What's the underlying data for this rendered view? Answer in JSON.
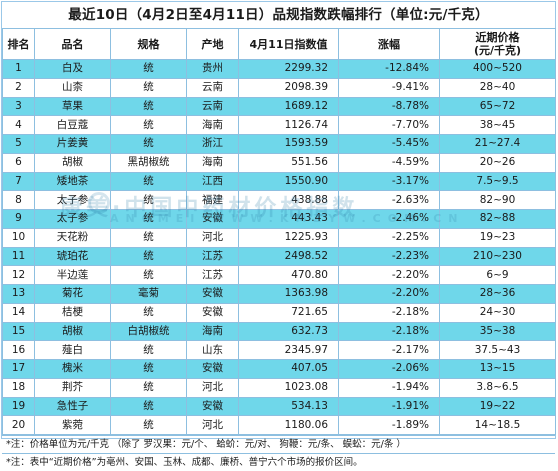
{
  "title": "最近10日（4月2日至4月11日）品规指数跌幅排行（单位:元/千克）",
  "headers": {
    "rank": "排名",
    "name": "品名",
    "spec": "规格",
    "origin": "产地",
    "index": "4月11日指数值",
    "change": "涨幅",
    "price_line1": "近期价格",
    "price_line2": "(元/千克)"
  },
  "rows": [
    {
      "rank": "1",
      "name": "白及",
      "spec": "统",
      "origin": "贵州",
      "index": "2299.32",
      "change": "-12.84%",
      "price": "400~520"
    },
    {
      "rank": "2",
      "name": "山柰",
      "spec": "统",
      "origin": "云南",
      "index": "2098.39",
      "change": "-9.41%",
      "price": "28~40"
    },
    {
      "rank": "3",
      "name": "草果",
      "spec": "统",
      "origin": "云南",
      "index": "1689.12",
      "change": "-8.78%",
      "price": "65~72"
    },
    {
      "rank": "4",
      "name": "白豆蔻",
      "spec": "统",
      "origin": "海南",
      "index": "1126.74",
      "change": "-7.70%",
      "price": "38~45"
    },
    {
      "rank": "5",
      "name": "片姜黄",
      "spec": "统",
      "origin": "浙江",
      "index": "1593.59",
      "change": "-5.45%",
      "price": "21~27.4"
    },
    {
      "rank": "6",
      "name": "胡椒",
      "spec": "黑胡椒统",
      "origin": "海南",
      "index": "551.56",
      "change": "-4.59%",
      "price": "20~26"
    },
    {
      "rank": "7",
      "name": "矮地茶",
      "spec": "统",
      "origin": "江西",
      "index": "1550.90",
      "change": "-3.17%",
      "price": "7.5~9.5"
    },
    {
      "rank": "8",
      "name": "太子参",
      "spec": "统",
      "origin": "福建",
      "index": "438.88",
      "change": "-2.63%",
      "price": "82~90"
    },
    {
      "rank": "9",
      "name": "太子参",
      "spec": "统",
      "origin": "安徽",
      "index": "443.43",
      "change": "-2.46%",
      "price": "82~88"
    },
    {
      "rank": "10",
      "name": "天花粉",
      "spec": "统",
      "origin": "河北",
      "index": "1225.93",
      "change": "-2.25%",
      "price": "19~23"
    },
    {
      "rank": "11",
      "name": "琥珀花",
      "spec": "统",
      "origin": "江苏",
      "index": "2498.52",
      "change": "-2.23%",
      "price": "210~230"
    },
    {
      "rank": "12",
      "name": "半边莲",
      "spec": "统",
      "origin": "江苏",
      "index": "470.80",
      "change": "-2.20%",
      "price": "6~9"
    },
    {
      "rank": "13",
      "name": "菊花",
      "spec": "毫菊",
      "origin": "安徽",
      "index": "1363.98",
      "change": "-2.20%",
      "price": "28~36"
    },
    {
      "rank": "14",
      "name": "桔梗",
      "spec": "统",
      "origin": "安徽",
      "index": "721.65",
      "change": "-2.18%",
      "price": "24~30"
    },
    {
      "rank": "15",
      "name": "胡椒",
      "spec": "白胡椒统",
      "origin": "海南",
      "index": "632.73",
      "change": "-2.18%",
      "price": "35~38"
    },
    {
      "rank": "16",
      "name": "薤白",
      "spec": "统",
      "origin": "山东",
      "index": "2345.97",
      "change": "-2.17%",
      "price": "37.5~43"
    },
    {
      "rank": "17",
      "name": "槐米",
      "spec": "统",
      "origin": "安徽",
      "index": "407.05",
      "change": "-2.06%",
      "price": "13~15"
    },
    {
      "rank": "18",
      "name": "荆芥",
      "spec": "统",
      "origin": "河北",
      "index": "1023.08",
      "change": "-1.94%",
      "price": "3.8~6.5"
    },
    {
      "rank": "19",
      "name": "急性子",
      "spec": "统",
      "origin": "安徽",
      "index": "534.13",
      "change": "-1.91%",
      "price": "19~22"
    },
    {
      "rank": "20",
      "name": "紫菀",
      "spec": "统",
      "origin": "河北",
      "index": "1180.06",
      "change": "-1.89%",
      "price": "14~18.5"
    }
  ],
  "notes": {
    "line1": "*注：价格单位为元/千克 （除了 罗汉果：元/个、 蛤蚧：元/对、 狗鞭：元/条、 蜈蚣：元/条 ）",
    "line2": "*注：表中“近期价格”为亳州、安国、玉林、成都、廉桥、普宁六个市场的报价区间。"
  },
  "watermark": {
    "main": "康美·中国中药材价格指数",
    "sub": "ANGMEI WWW.KMZYW.COM.CN"
  }
}
